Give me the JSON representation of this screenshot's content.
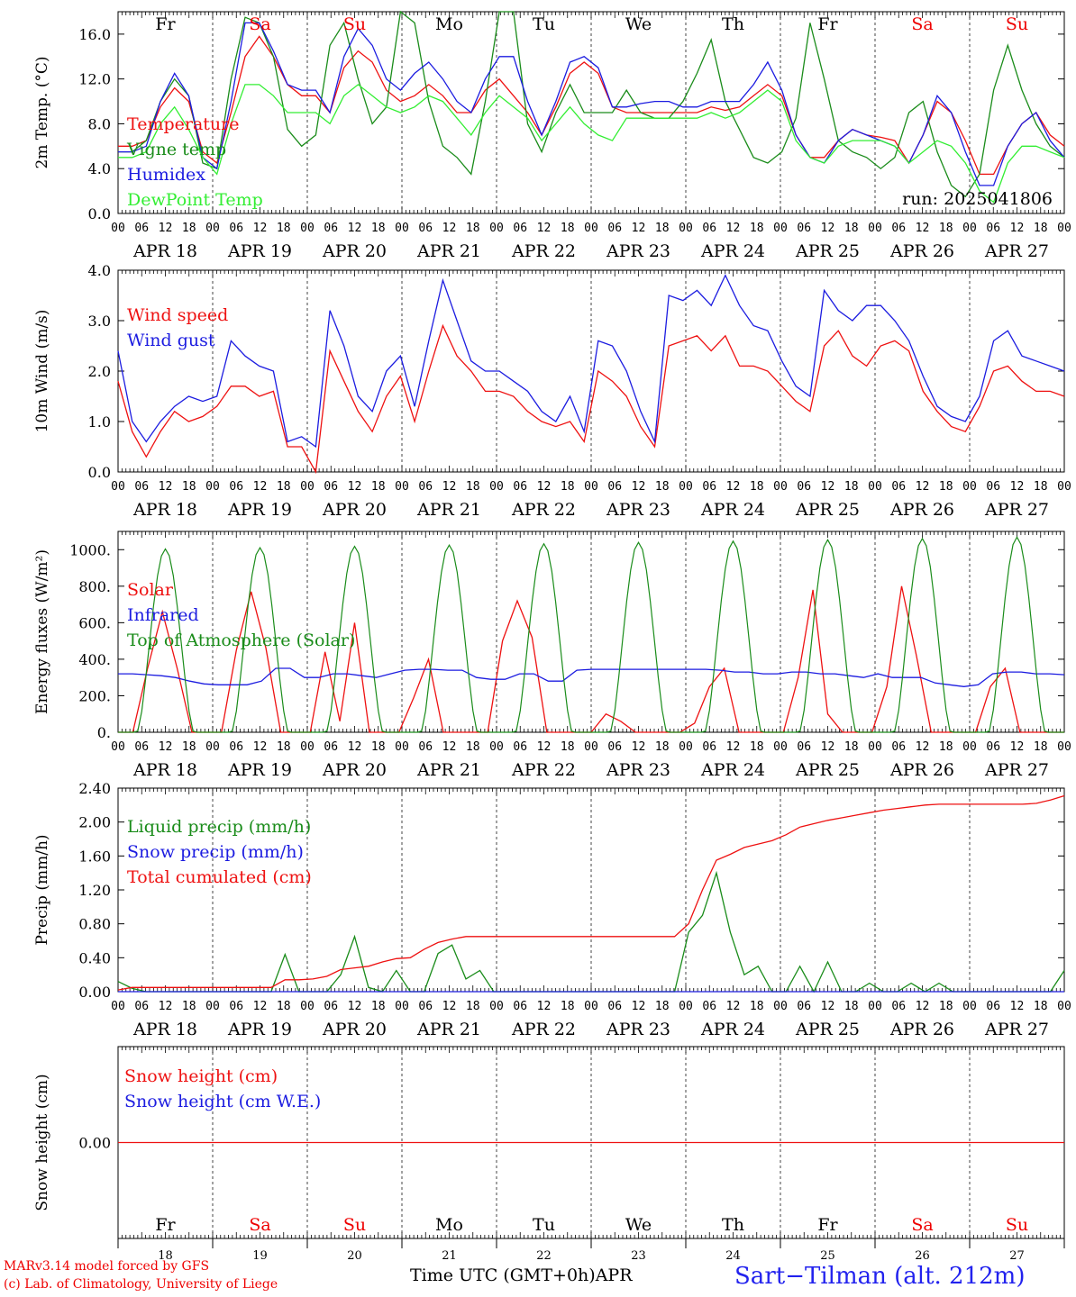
{
  "days": [
    "Fr",
    "Sa",
    "Su",
    "Mo",
    "Tu",
    "We",
    "Th",
    "Fr",
    "Sa",
    "Su"
  ],
  "day_colors": [
    "#000",
    "#e00",
    "#e00",
    "#000",
    "#000",
    "#000",
    "#000",
    "#000",
    "#e00",
    "#e00"
  ],
  "dates": [
    "APR 18",
    "APR 19",
    "APR 20",
    "APR 21",
    "APR 22",
    "APR 23",
    "APR 24",
    "APR 25",
    "APR 26",
    "APR 27"
  ],
  "day_numbers": [
    "18",
    "19",
    "20",
    "21",
    "22",
    "23",
    "24",
    "25",
    "26",
    "27"
  ],
  "hour_ticks": [
    "00",
    "06",
    "12",
    "18"
  ],
  "colors": {
    "red": "#ee1111",
    "green": "#1a8c1a",
    "blue": "#1c1ce0",
    "light_green": "#33ee33"
  },
  "footer": {
    "model": "MARv3.14 model forced by GFS",
    "copyright": "(c) Lab. of Climatology, University of Liege",
    "axis_title": "Time UTC (GMT+0h)",
    "month": "APR",
    "station": "Sart−Tilman (alt. 212m)"
  },
  "chart_data": [
    {
      "type": "line",
      "ylabel": "2m Temp. (°C)",
      "ylim": [
        0,
        18
      ],
      "yticks": [
        "0.0",
        "4.0",
        "8.0",
        "12.0",
        "16.0"
      ],
      "run_label": "run: 2025041806",
      "series": [
        {
          "name": "Temperature",
          "color": "red",
          "values": [
            6.0,
            6.0,
            6.5,
            9.5,
            11.2,
            10.0,
            5.5,
            4.5,
            9.0,
            14.0,
            15.8,
            14.0,
            11.5,
            10.5,
            10.5,
            9.0,
            13.0,
            14.5,
            13.5,
            11.0,
            10.0,
            10.5,
            11.5,
            10.5,
            9.0,
            9.0,
            11.0,
            12.0,
            10.5,
            9.0,
            7.0,
            9.5,
            12.5,
            13.5,
            12.5,
            9.5,
            9.0,
            9.0,
            9.0,
            9.0,
            9.0,
            9.0,
            9.5,
            9.2,
            9.5,
            10.5,
            11.5,
            10.5,
            7.0,
            5.0,
            5.0,
            6.5,
            7.5,
            7.0,
            6.8,
            6.5,
            4.5,
            7.0,
            10.0,
            9.0,
            6.5,
            3.5,
            3.5,
            6.0,
            8.0,
            9.0,
            7.0,
            6.0
          ]
        },
        {
          "name": "Vigne temp",
          "color": "green",
          "values": [
            5.5,
            5.5,
            6.5,
            10.0,
            12.0,
            10.5,
            4.5,
            4.0,
            12.0,
            17.5,
            17.0,
            14.0,
            7.5,
            6.0,
            7.0,
            15.0,
            17.0,
            12.0,
            8.0,
            9.5,
            18.0,
            17.0,
            10.0,
            6.0,
            5.0,
            3.5,
            10.0,
            19.0,
            18.0,
            8.0,
            5.5,
            9.0,
            11.5,
            9.0,
            9.0,
            9.0,
            11.0,
            9.0,
            8.5,
            8.5,
            10.0,
            12.5,
            15.5,
            10.0,
            7.5,
            5.0,
            4.5,
            5.5,
            8.5,
            17.0,
            12.0,
            6.5,
            5.5,
            5.0,
            4.0,
            5.0,
            9.0,
            10.0,
            5.5,
            2.5,
            1.5,
            3.5,
            11.0,
            15.0,
            11.0,
            8.0,
            6.0,
            5.0
          ]
        },
        {
          "name": "Humidex",
          "color": "blue",
          "values": [
            5.5,
            5.5,
            6.0,
            10.0,
            12.5,
            10.5,
            5.0,
            4.0,
            10.0,
            17.0,
            17.0,
            14.5,
            11.5,
            11.0,
            11.0,
            9.0,
            14.0,
            16.5,
            15.0,
            12.0,
            11.0,
            12.5,
            13.5,
            12.0,
            10.0,
            9.0,
            12.0,
            14.0,
            14.0,
            10.0,
            7.0,
            10.0,
            13.5,
            14.0,
            13.0,
            9.5,
            9.5,
            9.8,
            10.0,
            10.0,
            9.5,
            9.5,
            10.0,
            10.0,
            10.0,
            11.5,
            13.5,
            11.0,
            7.0,
            5.0,
            4.5,
            6.5,
            7.5,
            7.0,
            6.5,
            6.0,
            4.5,
            7.0,
            10.5,
            9.0,
            5.5,
            2.5,
            2.5,
            6.0,
            8.0,
            9.0,
            6.5,
            5.0
          ]
        },
        {
          "name": "DewPoint Temp",
          "color": "light_green",
          "values": [
            5.0,
            5.0,
            5.5,
            8.0,
            9.5,
            7.5,
            5.0,
            3.5,
            8.0,
            11.5,
            11.5,
            10.5,
            9.0,
            9.0,
            9.0,
            8.0,
            10.5,
            11.5,
            10.5,
            9.5,
            9.0,
            9.5,
            10.5,
            10.0,
            8.5,
            7.0,
            9.0,
            10.5,
            9.5,
            8.5,
            6.5,
            8.0,
            9.5,
            8.0,
            7.0,
            6.5,
            8.5,
            8.5,
            8.5,
            8.5,
            8.5,
            8.5,
            9.0,
            8.5,
            9.0,
            10.0,
            11.0,
            10.0,
            6.5,
            5.0,
            4.5,
            6.0,
            6.5,
            6.5,
            6.5,
            6.0,
            4.5,
            5.5,
            6.5,
            6.0,
            4.5,
            2.0,
            1.0,
            4.5,
            6.0,
            6.0,
            5.5,
            5.0
          ]
        }
      ]
    },
    {
      "type": "line",
      "ylabel": "10m Wind (m/s)",
      "ylim": [
        0,
        4
      ],
      "yticks": [
        "0.0",
        "1.0",
        "2.0",
        "3.0",
        "4.0"
      ],
      "series": [
        {
          "name": "Wind speed",
          "color": "red",
          "values": [
            1.8,
            0.8,
            0.3,
            0.8,
            1.2,
            1.0,
            1.1,
            1.3,
            1.7,
            1.7,
            1.5,
            1.6,
            0.5,
            0.5,
            0.0,
            2.4,
            1.8,
            1.2,
            0.8,
            1.5,
            1.9,
            1.0,
            2.0,
            2.9,
            2.3,
            2.0,
            1.6,
            1.6,
            1.5,
            1.2,
            1.0,
            0.9,
            1.0,
            0.6,
            2.0,
            1.8,
            1.5,
            0.9,
            0.5,
            2.5,
            2.6,
            2.7,
            2.4,
            2.7,
            2.1,
            2.1,
            2.0,
            1.7,
            1.4,
            1.2,
            2.5,
            2.8,
            2.3,
            2.1,
            2.5,
            2.6,
            2.4,
            1.6,
            1.2,
            0.9,
            0.8,
            1.3,
            2.0,
            2.1,
            1.8,
            1.6,
            1.6,
            1.5
          ]
        },
        {
          "name": "Wind gust",
          "color": "blue",
          "values": [
            2.4,
            1.0,
            0.6,
            1.0,
            1.3,
            1.5,
            1.4,
            1.5,
            2.6,
            2.3,
            2.1,
            2.0,
            0.6,
            0.7,
            0.5,
            3.2,
            2.5,
            1.5,
            1.2,
            2.0,
            2.3,
            1.3,
            2.6,
            3.8,
            3.0,
            2.2,
            2.0,
            2.0,
            1.8,
            1.6,
            1.2,
            1.0,
            1.5,
            0.8,
            2.6,
            2.5,
            2.0,
            1.2,
            0.6,
            3.5,
            3.4,
            3.6,
            3.3,
            3.9,
            3.3,
            2.9,
            2.8,
            2.2,
            1.7,
            1.5,
            3.6,
            3.2,
            3.0,
            3.3,
            3.3,
            3.0,
            2.6,
            1.9,
            1.3,
            1.1,
            1.0,
            1.5,
            2.6,
            2.8,
            2.3,
            2.2,
            2.1,
            2.0
          ]
        }
      ]
    },
    {
      "type": "line",
      "ylabel": "Energy fluxes (W/m²)",
      "ylim": [
        0,
        1100
      ],
      "yticks": [
        "0.",
        "200.",
        "400.",
        "600.",
        "800.",
        "1000."
      ],
      "series": [
        {
          "name": "Solar",
          "color": "red",
          "values": [
            0,
            0,
            350,
            660,
            350,
            0,
            0,
            0,
            450,
            770,
            460,
            0,
            0,
            0,
            440,
            60,
            600,
            0,
            0,
            0,
            190,
            400,
            0,
            0,
            0,
            0,
            500,
            720,
            520,
            0,
            0,
            0,
            0,
            100,
            60,
            0,
            0,
            0,
            0,
            50,
            250,
            350,
            0,
            0,
            0,
            0,
            300,
            780,
            100,
            0,
            0,
            0,
            250,
            800,
            420,
            0,
            0,
            0,
            0,
            250,
            350,
            0,
            0,
            0,
            0
          ]
        },
        {
          "name": "Infrared",
          "color": "blue",
          "values": [
            320,
            320,
            315,
            310,
            300,
            280,
            265,
            260,
            260,
            260,
            280,
            350,
            350,
            300,
            300,
            320,
            320,
            310,
            300,
            320,
            340,
            345,
            345,
            340,
            340,
            300,
            290,
            290,
            320,
            320,
            280,
            280,
            340,
            345,
            345,
            345,
            345,
            345,
            345,
            345,
            345,
            345,
            340,
            330,
            330,
            320,
            320,
            330,
            330,
            320,
            320,
            310,
            300,
            320,
            300,
            300,
            300,
            270,
            260,
            250,
            260,
            320,
            330,
            330,
            320,
            320,
            315
          ]
        },
        {
          "name": "Top of Atmosphere (Solar)",
          "color": "green"
        }
      ]
    },
    {
      "type": "line",
      "ylabel": "Precip (mm/h)",
      "ylim": [
        0,
        2.4
      ],
      "yticks": [
        "0.00",
        "0.40",
        "0.80",
        "1.20",
        "1.60",
        "2.00",
        "2.40"
      ],
      "series": [
        {
          "name": "Liquid precip (mm/h)",
          "color": "green",
          "values": [
            0.12,
            0.04,
            0.0,
            0.0,
            0.0,
            0.0,
            0.0,
            0.0,
            0.0,
            0.0,
            0.0,
            0.0,
            0.44,
            0.0,
            0.0,
            0.0,
            0.2,
            0.65,
            0.05,
            0.0,
            0.25,
            0.0,
            0.0,
            0.45,
            0.55,
            0.15,
            0.25,
            0.0,
            0.0,
            0.0,
            0.0,
            0.0,
            0.0,
            0.0,
            0.0,
            0.0,
            0.0,
            0.0,
            0.0,
            0.0,
            0.0,
            0.7,
            0.9,
            1.4,
            0.7,
            0.2,
            0.3,
            0.0,
            0.0,
            0.3,
            0.0,
            0.35,
            0.0,
            0.0,
            0.1,
            0.0,
            0.0,
            0.1,
            0.0,
            0.1,
            0.0,
            0.0,
            0.0,
            0.0,
            0.0,
            0.0,
            0.0,
            0.0,
            0.25
          ]
        },
        {
          "name": "Snow precip (mm/h)",
          "color": "blue",
          "values": [
            0,
            0,
            0,
            0,
            0,
            0,
            0,
            0,
            0,
            0,
            0,
            0,
            0,
            0,
            0,
            0,
            0,
            0,
            0,
            0,
            0,
            0,
            0,
            0,
            0,
            0,
            0,
            0,
            0,
            0,
            0,
            0,
            0,
            0,
            0,
            0,
            0,
            0,
            0,
            0,
            0,
            0,
            0,
            0,
            0,
            0,
            0,
            0,
            0,
            0,
            0,
            0,
            0,
            0,
            0,
            0,
            0,
            0,
            0,
            0,
            0,
            0,
            0,
            0,
            0,
            0,
            0,
            0,
            0,
            0,
            0
          ]
        },
        {
          "name": "Total cumulated (cm)",
          "color": "red",
          "values": [
            0.02,
            0.05,
            0.05,
            0.05,
            0.05,
            0.05,
            0.05,
            0.05,
            0.05,
            0.05,
            0.05,
            0.05,
            0.14,
            0.14,
            0.15,
            0.18,
            0.26,
            0.28,
            0.3,
            0.35,
            0.39,
            0.4,
            0.5,
            0.58,
            0.62,
            0.65,
            0.65,
            0.65,
            0.65,
            0.65,
            0.65,
            0.65,
            0.65,
            0.65,
            0.65,
            0.65,
            0.65,
            0.65,
            0.65,
            0.65,
            0.65,
            0.8,
            1.2,
            1.55,
            1.62,
            1.7,
            1.74,
            1.78,
            1.85,
            1.94,
            1.98,
            2.02,
            2.05,
            2.08,
            2.11,
            2.14,
            2.16,
            2.18,
            2.2,
            2.21,
            2.21,
            2.21,
            2.21,
            2.21,
            2.21,
            2.21,
            2.22,
            2.26,
            2.31
          ]
        }
      ]
    },
    {
      "type": "line",
      "ylabel": "Snow height (cm)",
      "ylim": [
        -1,
        1
      ],
      "yticks": [
        "0.00"
      ],
      "series": [
        {
          "name": "Snow height (cm)",
          "color": "red",
          "values": [
            0,
            0
          ]
        },
        {
          "name": "Snow height (cm W.E.)",
          "color": "blue"
        }
      ]
    }
  ]
}
